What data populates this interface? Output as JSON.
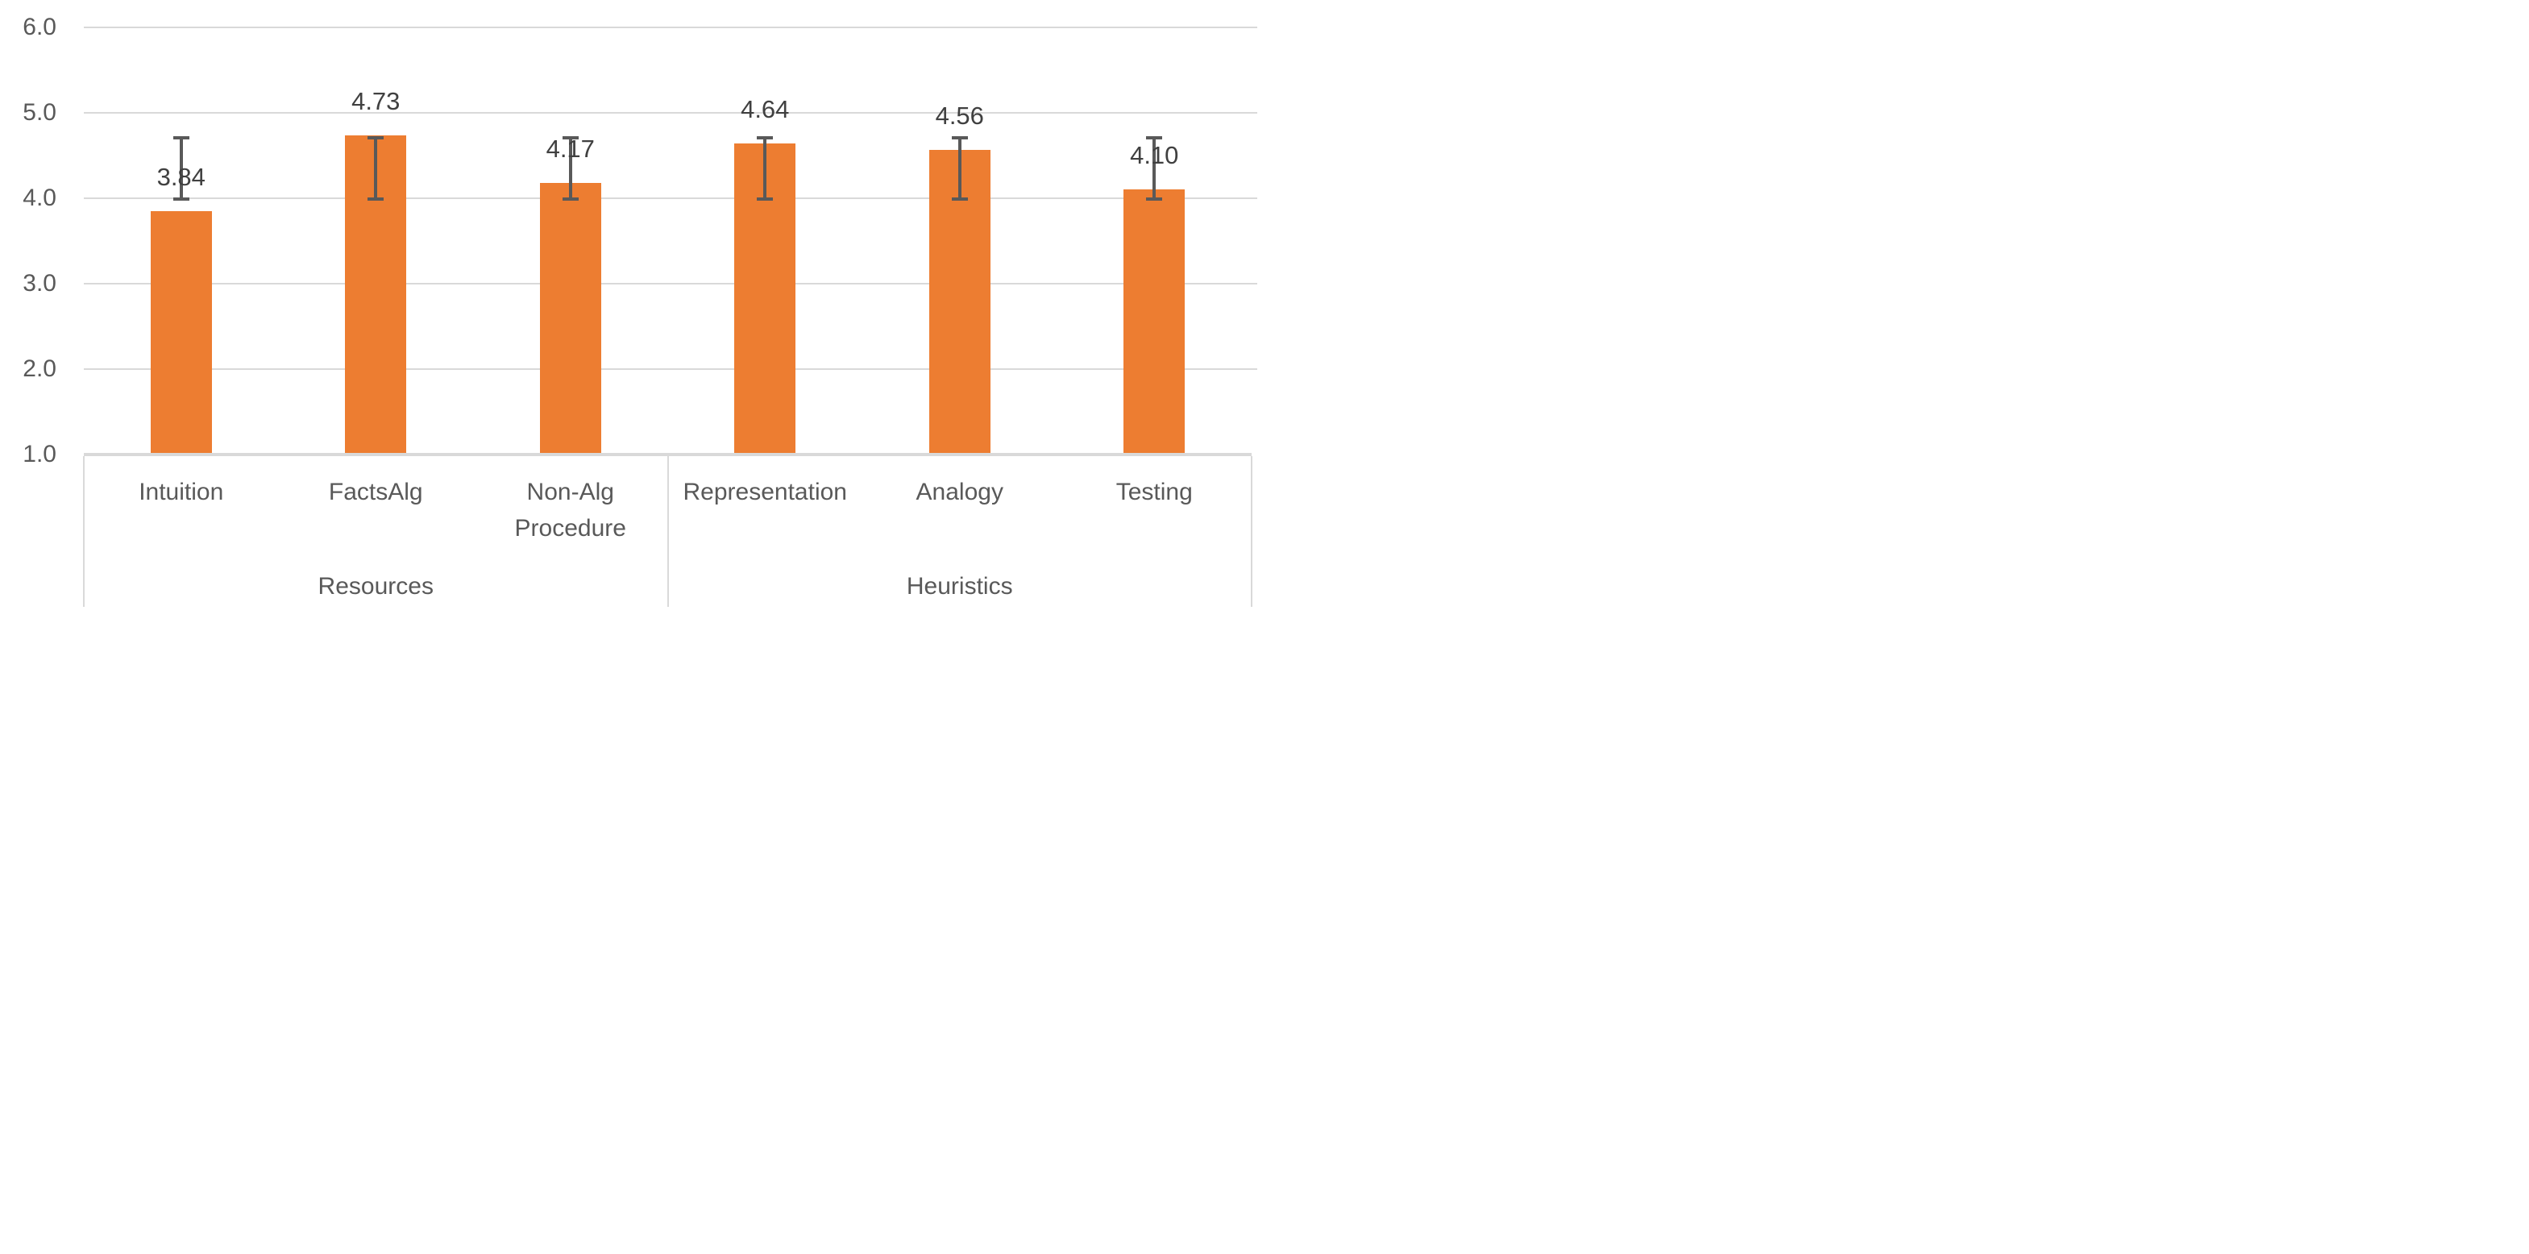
{
  "chart_data": {
    "type": "bar",
    "title": "",
    "categories": [
      "Intuition",
      "FactsAlg",
      "Non-Alg Procedure",
      "Representation",
      "Analogy",
      "Testing"
    ],
    "category_lines": [
      [
        "Intuition"
      ],
      [
        "FactsAlg"
      ],
      [
        "Non-Alg",
        "Procedure"
      ],
      [
        "Representation"
      ],
      [
        "Analogy"
      ],
      [
        "Testing"
      ]
    ],
    "groups": [
      {
        "label": "Resources",
        "span": 3
      },
      {
        "label": "Heuristics",
        "span": 3
      }
    ],
    "values": [
      3.84,
      4.73,
      4.17,
      4.64,
      4.56,
      4.1
    ],
    "value_labels": [
      "3.84",
      "4.73",
      "4.17",
      "4.64",
      "4.56",
      "4.10"
    ],
    "error_bars": {
      "low": 3.99,
      "high": 4.7,
      "note": "same whisker range drawn on every bar"
    },
    "y_axis": {
      "min": 1.0,
      "max": 6.0,
      "step": 1.0,
      "tick_labels": [
        "6.0",
        "5.0",
        "4.0",
        "3.0",
        "2.0",
        "1.0"
      ]
    },
    "grid": true,
    "legend": false,
    "bar_width_fraction": 0.315,
    "colors": {
      "bar": "#ED7D31",
      "error_bar": "#595959",
      "axis_text": "#595959",
      "data_label": "#404040",
      "category_text": "#595959",
      "gridline": "#D9D9D9",
      "axis_line": "#D9D9D9",
      "background": "#FFFFFF"
    }
  }
}
